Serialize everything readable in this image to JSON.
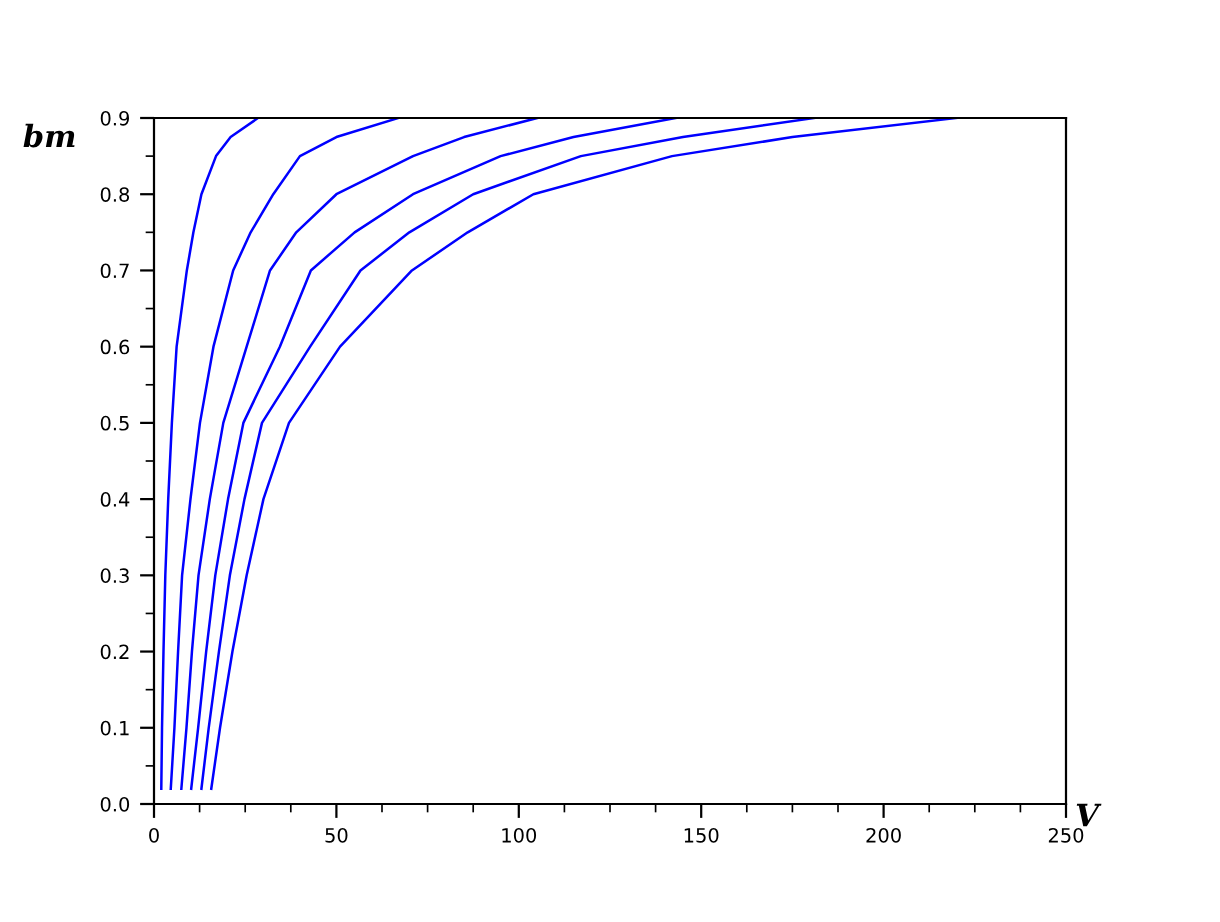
{
  "chart_data": {
    "type": "line",
    "xlabel": "V",
    "ylabel": "bm",
    "series": [
      {
        "color": "#0000ff",
        "x": [
          2,
          2.2,
          2.6,
          3.1,
          3.9,
          4.9,
          6.2,
          9,
          10.8,
          13,
          17,
          21,
          28.5
        ],
        "values": [
          0.02,
          0.1,
          0.2,
          0.3,
          0.4,
          0.5,
          0.6,
          0.7,
          0.75,
          0.8,
          0.85,
          0.875,
          0.9
        ]
      },
      {
        "color": "#0000ff",
        "x": [
          4.6,
          5.6,
          6.6,
          7.7,
          10,
          12.6,
          16.3,
          21.7,
          26.5,
          32.7,
          40,
          50,
          67
        ],
        "values": [
          0.02,
          0.1,
          0.2,
          0.3,
          0.4,
          0.5,
          0.6,
          0.7,
          0.75,
          0.8,
          0.85,
          0.875,
          0.9
        ]
      },
      {
        "color": "#0000ff",
        "x": [
          7.5,
          8.9,
          10.4,
          12.2,
          15.3,
          19,
          25.4,
          31.8,
          39,
          50,
          71,
          85,
          105
        ],
        "values": [
          0.02,
          0.1,
          0.2,
          0.3,
          0.4,
          0.5,
          0.6,
          0.7,
          0.75,
          0.8,
          0.85,
          0.875,
          0.9
        ]
      },
      {
        "color": "#0000ff",
        "x": [
          10.2,
          12.1,
          14.3,
          16.8,
          20.3,
          24.5,
          34.5,
          43,
          55,
          71,
          95,
          115,
          143
        ],
        "values": [
          0.02,
          0.1,
          0.2,
          0.3,
          0.4,
          0.5,
          0.6,
          0.7,
          0.75,
          0.8,
          0.85,
          0.875,
          0.9
        ]
      },
      {
        "color": "#0000ff",
        "x": [
          13,
          15,
          17.8,
          20.8,
          24.8,
          29.6,
          42.8,
          56.6,
          70,
          87.5,
          117,
          145,
          181
        ],
        "values": [
          0.02,
          0.1,
          0.2,
          0.3,
          0.4,
          0.5,
          0.6,
          0.7,
          0.75,
          0.8,
          0.85,
          0.875,
          0.9
        ]
      },
      {
        "color": "#0000ff",
        "x": [
          15.7,
          18.1,
          21.5,
          25.4,
          30,
          37,
          51,
          70.7,
          86,
          104,
          142,
          175,
          220
        ],
        "values": [
          0.02,
          0.1,
          0.2,
          0.3,
          0.4,
          0.5,
          0.6,
          0.7,
          0.75,
          0.8,
          0.85,
          0.875,
          0.9
        ]
      }
    ],
    "xlim": [
      0,
      250
    ],
    "xticks": [
      0,
      50,
      100,
      150,
      200,
      250
    ],
    "ylim": [
      0,
      0.9
    ],
    "yticks": [
      {
        "value": 0,
        "label": "0.0"
      },
      0.1,
      0.2,
      0.3,
      0.4,
      0.5,
      0.6,
      0.7,
      0.8,
      0.9
    ],
    "grid": false,
    "legend": false,
    "marker": "none",
    "line_style": "solid"
  }
}
